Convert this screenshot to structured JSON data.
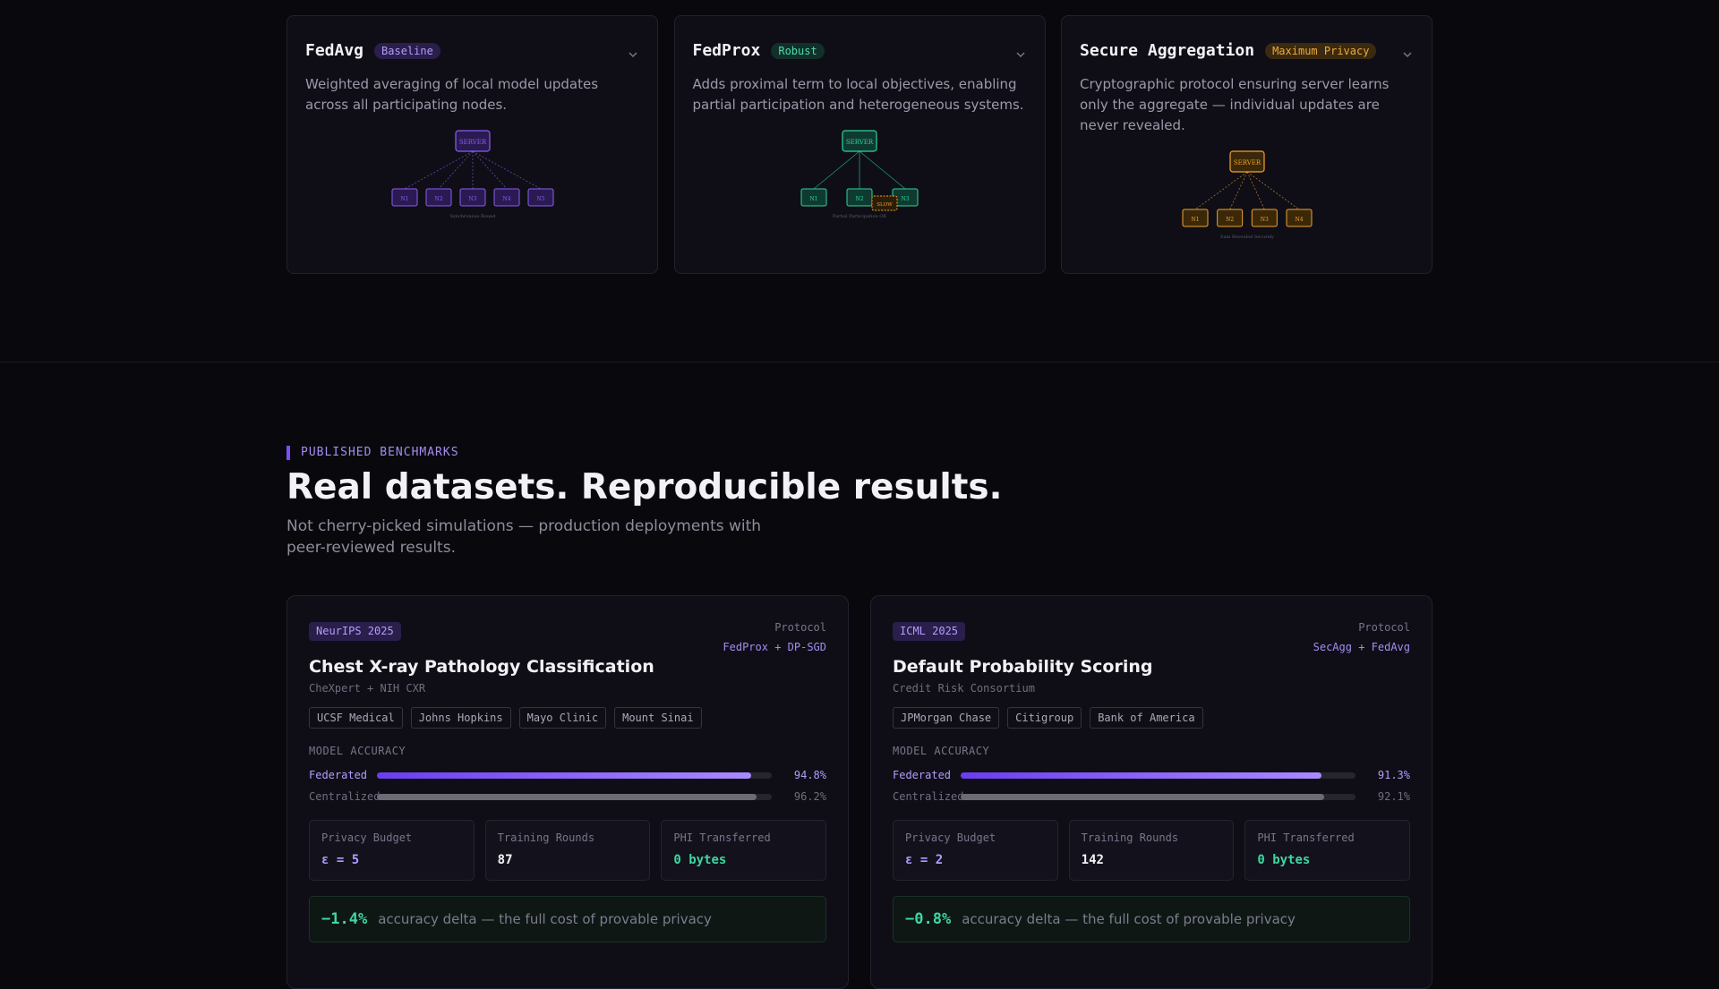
{
  "protocols": [
    {
      "name": "FedAvg",
      "badge": "Baseline",
      "description": "Weighted averaging of local model updates across all participating nodes.",
      "diagram": {
        "server": "SERVER",
        "nodes": [
          "N1",
          "N2",
          "N3",
          "N4",
          "N5"
        ],
        "caption": "Synchronous Round"
      }
    },
    {
      "name": "FedProx",
      "badge": "Robust",
      "description": "Adds proximal term to local objectives, enabling partial participation and heterogeneous systems.",
      "diagram": {
        "server": "SERVER",
        "nodes": [
          "N1",
          "N2",
          "N3"
        ],
        "note": "SLOW",
        "caption": "Partial Participation OK"
      }
    },
    {
      "name": "Secure Aggregation",
      "badge": "Maximum Privacy",
      "description": "Cryptographic protocol ensuring server learns only the aggregate — individual updates are never revealed.",
      "diagram": {
        "server": "SERVER",
        "nodes": [
          "N1",
          "N2",
          "N3",
          "N4"
        ],
        "caption": "Sum Revealed Securely"
      }
    }
  ],
  "benchmarks_section": {
    "eyebrow": "PUBLISHED BENCHMARKS",
    "title": "Real datasets. Reproducible results.",
    "subtitle": "Not cherry-picked simulations — production deployments with peer-reviewed results."
  },
  "benchmarks": [
    {
      "venue": "NeurIPS 2025",
      "protocol_label": "Protocol",
      "protocol": "FedProx + DP-SGD",
      "title": "Chest X-ray Pathology Classification",
      "dataset": "CheXpert + NIH CXR",
      "institutions": [
        "UCSF Medical",
        "Johns Hopkins",
        "Mayo Clinic",
        "Mount Sinai"
      ],
      "accuracy_label": "MODEL ACCURACY",
      "accuracy": [
        {
          "name": "Federated",
          "value": 94.8,
          "label": "94.8%"
        },
        {
          "name": "Centralized",
          "value": 96.2,
          "label": "96.2%"
        }
      ],
      "stats": [
        {
          "label": "Privacy Budget",
          "value": "ε = 5"
        },
        {
          "label": "Training Rounds",
          "value": "87"
        },
        {
          "label": "PHI Transferred",
          "value": "0 bytes"
        }
      ],
      "delta": "−1.4%",
      "delta_text": "accuracy delta — the full cost of provable privacy"
    },
    {
      "venue": "ICML 2025",
      "protocol_label": "Protocol",
      "protocol": "SecAgg + FedAvg",
      "title": "Default Probability Scoring",
      "dataset": "Credit Risk Consortium",
      "institutions": [
        "JPMorgan Chase",
        "Citigroup",
        "Bank of America"
      ],
      "accuracy_label": "MODEL ACCURACY",
      "accuracy": [
        {
          "name": "Federated",
          "value": 91.3,
          "label": "91.3%"
        },
        {
          "name": "Centralized",
          "value": 92.1,
          "label": "92.1%"
        }
      ],
      "stats": [
        {
          "label": "Privacy Budget",
          "value": "ε = 2"
        },
        {
          "label": "Training Rounds",
          "value": "142"
        },
        {
          "label": "PHI Transferred",
          "value": "0 bytes"
        }
      ],
      "delta": "−0.8%",
      "delta_text": "accuracy delta — the full cost of provable privacy"
    }
  ]
}
